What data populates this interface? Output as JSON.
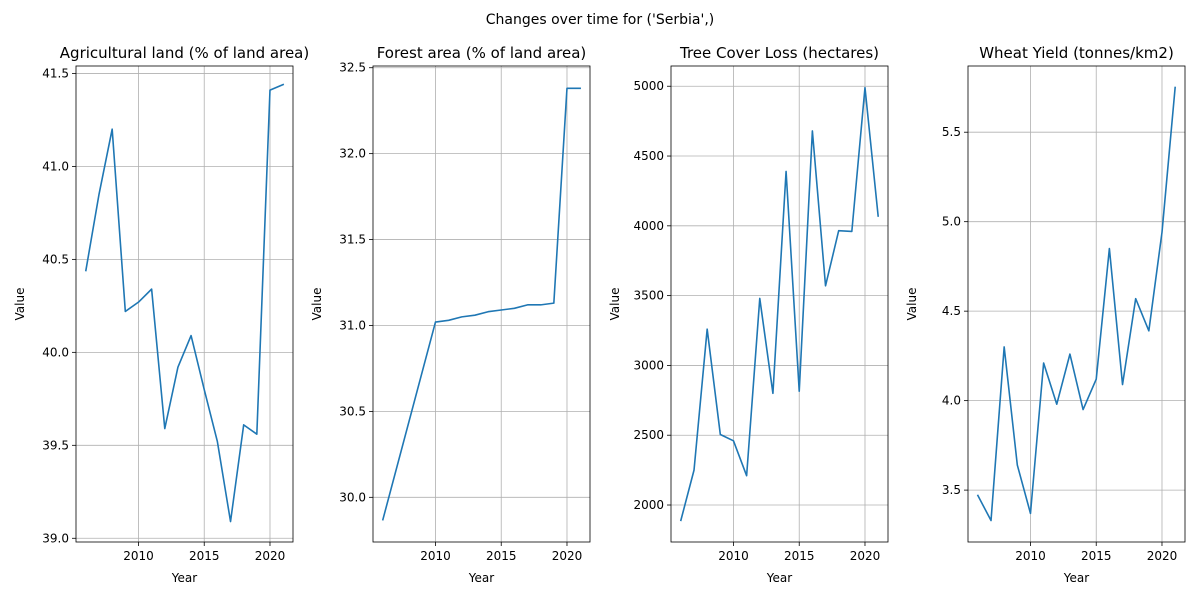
{
  "suptitle": "Changes over time for ('Serbia',)",
  "colors": {
    "series": "#1f77b4"
  },
  "chart_data": [
    {
      "type": "line",
      "title": "Agricultural land (% of land area)",
      "xlabel": "Year",
      "ylabel": "Value",
      "xlim": [
        2005.25,
        2021.75
      ],
      "ylim": [
        38.98,
        41.54
      ],
      "xticks": [
        2010,
        2015,
        2020
      ],
      "yticks": [
        39.0,
        39.5,
        40.0,
        40.5,
        41.0,
        41.5
      ],
      "ytick_labels": [
        "39.0",
        "39.5",
        "40.0",
        "40.5",
        "41.0",
        "41.5"
      ],
      "grid": true,
      "x": [
        2006,
        2007,
        2008,
        2009,
        2010,
        2011,
        2012,
        2013,
        2014,
        2015,
        2016,
        2017,
        2018,
        2019,
        2020,
        2021
      ],
      "y": [
        40.44,
        40.85,
        41.2,
        40.22,
        40.27,
        40.34,
        39.59,
        39.92,
        40.09,
        39.8,
        39.52,
        39.09,
        39.61,
        39.56,
        41.41,
        41.44
      ]
    },
    {
      "type": "line",
      "title": "Forest area (% of land area)",
      "xlabel": "Year",
      "ylabel": "Value",
      "xlim": [
        2005.25,
        2021.75
      ],
      "ylim": [
        29.74,
        32.51
      ],
      "xticks": [
        2010,
        2015,
        2020
      ],
      "yticks": [
        30.0,
        30.5,
        31.0,
        31.5,
        32.0,
        32.5
      ],
      "ytick_labels": [
        "30.0",
        "30.5",
        "31.0",
        "31.5",
        "32.0",
        "32.5"
      ],
      "grid": true,
      "x": [
        2006,
        2010,
        2011,
        2012,
        2013,
        2014,
        2015,
        2016,
        2017,
        2018,
        2019,
        2020,
        2021
      ],
      "y": [
        29.87,
        31.02,
        31.03,
        31.05,
        31.06,
        31.08,
        31.09,
        31.1,
        31.12,
        31.12,
        31.13,
        32.38,
        32.38
      ]
    },
    {
      "type": "line",
      "title": "Tree Cover Loss (hectares)",
      "xlabel": "Year",
      "ylabel": "Value",
      "xlim": [
        2005.25,
        2021.75
      ],
      "ylim": [
        1735,
        5145
      ],
      "xticks": [
        2010,
        2015,
        2020
      ],
      "yticks": [
        2000,
        2500,
        3000,
        3500,
        4000,
        4500,
        5000
      ],
      "ytick_labels": [
        "2000",
        "2500",
        "3000",
        "3500",
        "4000",
        "4500",
        "5000"
      ],
      "grid": true,
      "x": [
        2006,
        2007,
        2008,
        2009,
        2010,
        2011,
        2012,
        2013,
        2014,
        2015,
        2016,
        2017,
        2018,
        2019,
        2020,
        2021
      ],
      "y": [
        1890,
        2250,
        3260,
        2505,
        2460,
        2210,
        3480,
        2800,
        4390,
        2815,
        4680,
        3570,
        3965,
        3960,
        4990,
        4070
      ]
    },
    {
      "type": "line",
      "title": "Wheat Yield (tonnes/km2)",
      "xlabel": "Year",
      "ylabel": "Value",
      "xlim": [
        2005.25,
        2021.75
      ],
      "ylim": [
        3.21,
        5.87
      ],
      "xticks": [
        2010,
        2015,
        2020
      ],
      "yticks": [
        3.5,
        4.0,
        4.5,
        5.0,
        5.5
      ],
      "ytick_labels": [
        "3.5",
        "4.0",
        "4.5",
        "5.0",
        "5.5"
      ],
      "grid": true,
      "x": [
        2006,
        2007,
        2008,
        2009,
        2010,
        2011,
        2012,
        2013,
        2014,
        2015,
        2016,
        2017,
        2018,
        2019,
        2020,
        2021
      ],
      "y": [
        3.47,
        3.33,
        4.3,
        3.64,
        3.37,
        4.21,
        3.98,
        4.26,
        3.95,
        4.12,
        4.85,
        4.09,
        4.57,
        4.39,
        4.94,
        5.75
      ]
    }
  ]
}
